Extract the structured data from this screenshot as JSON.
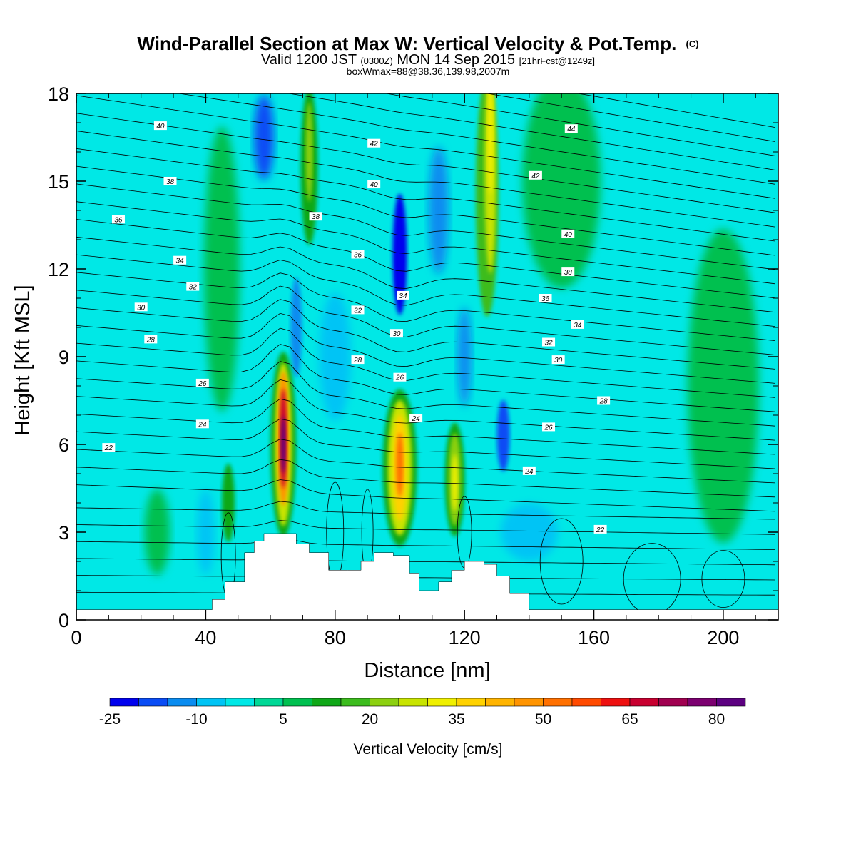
{
  "chart_data": {
    "type": "heatmap",
    "title": "Wind-Parallel Section at Max W: Vertical Velocity & Pot.Temp.",
    "title_mark": "(C)",
    "subtitle_parts": {
      "pre": "Valid 1200 JST",
      "zulu": "(0300Z)",
      "mid": "MON 14 Sep 2015",
      "fcst": "[21hrFcst@1249z]"
    },
    "subtitle2": "boxWmax=88@38.36,139.98,2007m",
    "xlabel": "Distance [nm]",
    "ylabel": "Height [Kft MSL]",
    "xlim": [
      0,
      217
    ],
    "ylim": [
      0,
      18
    ],
    "x_ticks": [
      0,
      40,
      80,
      120,
      160,
      200
    ],
    "x_tick_labels": [
      "0",
      "40",
      "80",
      "120",
      "160",
      "200"
    ],
    "y_ticks": [
      0,
      3,
      6,
      9,
      12,
      15,
      18
    ],
    "y_tick_labels": [
      "0",
      "3",
      "6",
      "9",
      "12",
      "15",
      "18"
    ],
    "colorbar": {
      "title": "Vertical Velocity [cm/s]",
      "min": -25,
      "max": 85,
      "step": 5,
      "labeled_values": [
        -25,
        -10,
        5,
        20,
        35,
        50,
        65,
        80
      ],
      "labels": [
        "-25",
        "-10",
        "5",
        "20",
        "35",
        "50",
        "65",
        "80"
      ],
      "colors": [
        "#0000ee",
        "#0a4cf5",
        "#0a8cf0",
        "#00c4f5",
        "#00e8e6",
        "#00d896",
        "#00c050",
        "#10a818",
        "#3cbc1e",
        "#8cd010",
        "#c8e400",
        "#f0f000",
        "#ffd200",
        "#ffb400",
        "#ff9400",
        "#ff7000",
        "#ff4a00",
        "#ee1010",
        "#c80030",
        "#a00050",
        "#7c0070",
        "#5c0080"
      ]
    },
    "features": [
      {
        "x": 64,
        "y": 6.0,
        "w_max": 88
      },
      {
        "x": 100,
        "y": 5.2,
        "w_max": 50
      },
      {
        "x": 117,
        "y": 4.8,
        "w_max": 30
      },
      {
        "x": 128,
        "y": 15,
        "w_max": 30
      },
      {
        "x": 72,
        "y": 16,
        "w_max": 18
      },
      {
        "x": 100,
        "y": 12.2,
        "w_max": -25
      },
      {
        "x": 133,
        "y": 6.0,
        "w_max": -22
      }
    ],
    "terrain_kft": [
      {
        "x": 0,
        "h": 0.35
      },
      {
        "x": 38,
        "h": 0.35
      },
      {
        "x": 42,
        "h": 0.7
      },
      {
        "x": 46,
        "h": 1.3
      },
      {
        "x": 52,
        "h": 2.3
      },
      {
        "x": 55,
        "h": 2.7
      },
      {
        "x": 58,
        "h": 2.95
      },
      {
        "x": 64,
        "h": 2.95
      },
      {
        "x": 68,
        "h": 2.6
      },
      {
        "x": 72,
        "h": 2.3
      },
      {
        "x": 78,
        "h": 1.7
      },
      {
        "x": 84,
        "h": 1.7
      },
      {
        "x": 88,
        "h": 2.0
      },
      {
        "x": 92,
        "h": 2.3
      },
      {
        "x": 98,
        "h": 2.2
      },
      {
        "x": 103,
        "h": 1.6
      },
      {
        "x": 106,
        "h": 1.0
      },
      {
        "x": 112,
        "h": 1.3
      },
      {
        "x": 116,
        "h": 1.7
      },
      {
        "x": 120,
        "h": 2.0
      },
      {
        "x": 126,
        "h": 1.9
      },
      {
        "x": 130,
        "h": 1.5
      },
      {
        "x": 134,
        "h": 0.9
      },
      {
        "x": 140,
        "h": 0.35
      },
      {
        "x": 217,
        "h": 0.35
      }
    ],
    "theta_contours": {
      "labels": [
        {
          "text": "40",
          "x": 26,
          "y": 16.9
        },
        {
          "text": "38",
          "x": 29,
          "y": 15.0
        },
        {
          "text": "36",
          "x": 13,
          "y": 13.7
        },
        {
          "text": "34",
          "x": 32,
          "y": 12.3
        },
        {
          "text": "32",
          "x": 36,
          "y": 11.4
        },
        {
          "text": "30",
          "x": 20,
          "y": 10.7
        },
        {
          "text": "28",
          "x": 23,
          "y": 9.6
        },
        {
          "text": "26",
          "x": 39,
          "y": 8.1
        },
        {
          "text": "24",
          "x": 39,
          "y": 6.7
        },
        {
          "text": "22",
          "x": 10,
          "y": 5.9
        },
        {
          "text": "42",
          "x": 92,
          "y": 16.3
        },
        {
          "text": "40",
          "x": 92,
          "y": 14.9
        },
        {
          "text": "38",
          "x": 74,
          "y": 13.8
        },
        {
          "text": "36",
          "x": 87,
          "y": 12.5
        },
        {
          "text": "34",
          "x": 101,
          "y": 11.1
        },
        {
          "text": "32",
          "x": 87,
          "y": 10.6
        },
        {
          "text": "30",
          "x": 99,
          "y": 9.8
        },
        {
          "text": "28",
          "x": 87,
          "y": 8.9
        },
        {
          "text": "26",
          "x": 100,
          "y": 8.3
        },
        {
          "text": "24",
          "x": 105,
          "y": 6.9
        },
        {
          "text": "44",
          "x": 153,
          "y": 16.8
        },
        {
          "text": "42",
          "x": 142,
          "y": 15.2
        },
        {
          "text": "40",
          "x": 152,
          "y": 13.2
        },
        {
          "text": "38",
          "x": 152,
          "y": 11.9
        },
        {
          "text": "36",
          "x": 145,
          "y": 11.0
        },
        {
          "text": "34",
          "x": 155,
          "y": 10.1
        },
        {
          "text": "32",
          "x": 146,
          "y": 9.5
        },
        {
          "text": "30",
          "x": 149,
          "y": 8.9
        },
        {
          "text": "28",
          "x": 163,
          "y": 7.5
        },
        {
          "text": "26",
          "x": 146,
          "y": 6.6
        },
        {
          "text": "24",
          "x": 140,
          "y": 5.1
        },
        {
          "text": "22",
          "x": 162,
          "y": 3.1
        }
      ]
    }
  }
}
